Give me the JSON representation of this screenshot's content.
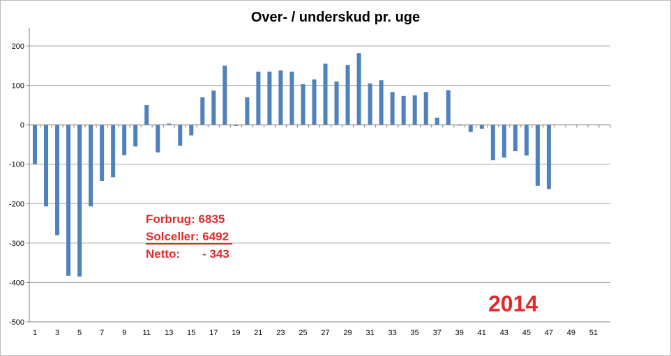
{
  "chart_data": {
    "type": "bar",
    "title": "Over- / underskud pr. uge",
    "xlabel": "",
    "ylabel": "",
    "ylim": [
      -500,
      200
    ],
    "yticks": [
      200,
      100,
      0,
      -100,
      -200,
      -300,
      -400,
      -500
    ],
    "xtick_labels": [
      1,
      3,
      5,
      7,
      9,
      11,
      13,
      15,
      17,
      19,
      21,
      23,
      25,
      27,
      29,
      31,
      33,
      35,
      37,
      39,
      41,
      43,
      45,
      47,
      49,
      51
    ],
    "grid": true,
    "legend": "none",
    "bar_color": "#4f81bd",
    "categories": [
      1,
      2,
      3,
      4,
      5,
      6,
      7,
      8,
      9,
      10,
      11,
      12,
      13,
      14,
      15,
      16,
      17,
      18,
      19,
      20,
      21,
      22,
      23,
      24,
      25,
      26,
      27,
      28,
      29,
      30,
      31,
      32,
      33,
      34,
      35,
      36,
      37,
      38,
      39,
      40,
      41,
      42,
      43,
      44,
      45,
      46,
      47,
      48,
      49,
      50,
      51,
      52
    ],
    "values": [
      -100,
      -207,
      -280,
      -383,
      -385,
      -207,
      -143,
      -133,
      -77,
      -55,
      50,
      -70,
      3,
      -53,
      -27,
      70,
      87,
      150,
      -3,
      70,
      135,
      135,
      138,
      135,
      103,
      115,
      155,
      110,
      152,
      182,
      105,
      113,
      83,
      73,
      75,
      83,
      18,
      88,
      -2,
      -18,
      -10,
      -90,
      -83,
      -67,
      -78,
      -155,
      -163,
      0,
      0,
      0,
      0,
      0
    ],
    "annotations": {
      "forbrug": "Forbrug:  6835",
      "solceller": "Solceller: 6492",
      "netto_label": "Netto:",
      "netto_value": "- 343",
      "year": "2014"
    },
    "annotation_color": "#e02b2b"
  }
}
